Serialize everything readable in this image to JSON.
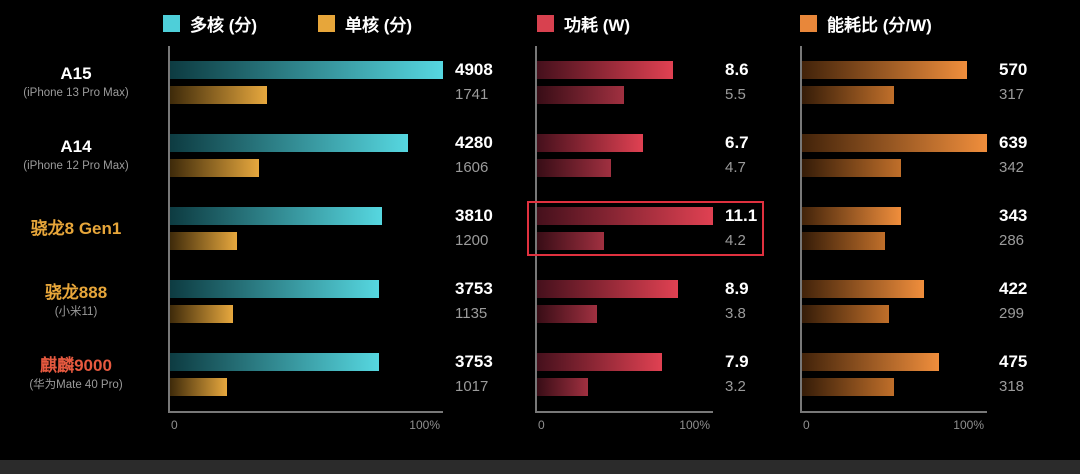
{
  "legend": {
    "items": [
      {
        "label": "多核 (分)",
        "color": "#4ecfd9"
      },
      {
        "label": "单核 (分)",
        "color": "#e7a63a"
      },
      {
        "label": "功耗 (W)",
        "color": "#d8414f"
      },
      {
        "label": "能耗比 (分/W)",
        "color": "#e8873a"
      }
    ]
  },
  "axis": {
    "zero": "0",
    "hundred": "100%"
  },
  "highlight_color": "#e0313f",
  "chart_data": {
    "type": "bar",
    "orientation": "horizontal",
    "legend_position": "top",
    "axis_range": [
      "0",
      "100%"
    ],
    "series_names": [
      "多核 (分)",
      "单核 (分)",
      "功耗 (W)",
      "能耗比 (分/W)"
    ],
    "max": {
      "score": 4908,
      "power": 11.1,
      "efficiency": 639
    },
    "rows": [
      {
        "chip": "A15",
        "subtitle": "(iPhone 13 Pro Max)",
        "chip_color": "#ffffff",
        "multi_core": 4908,
        "single_core": 1741,
        "power_max": 8.6,
        "power_secondary": 5.5,
        "efficiency": 570,
        "efficiency_secondary": 317,
        "highlight_power": false
      },
      {
        "chip": "A14",
        "subtitle": "(iPhone 12 Pro Max)",
        "chip_color": "#ffffff",
        "multi_core": 4280,
        "single_core": 1606,
        "power_max": 6.7,
        "power_secondary": 4.7,
        "efficiency": 639,
        "efficiency_secondary": 342,
        "highlight_power": false
      },
      {
        "chip": "骁龙8 Gen1",
        "subtitle": "",
        "chip_color": "#e7a63a",
        "multi_core": 3810,
        "single_core": 1200,
        "power_max": 11.1,
        "power_secondary": 4.2,
        "efficiency": 343,
        "efficiency_secondary": 286,
        "highlight_power": true
      },
      {
        "chip": "骁龙888",
        "subtitle": "(小米11)",
        "chip_color": "#e7a63a",
        "multi_core": 3753,
        "single_core": 1135,
        "power_max": 8.9,
        "power_secondary": 3.8,
        "efficiency": 422,
        "efficiency_secondary": 299,
        "highlight_power": false
      },
      {
        "chip": "麒麟9000",
        "subtitle": "(华为Mate 40 Pro)",
        "chip_color": "#e6593f",
        "multi_core": 3753,
        "single_core": 1017,
        "power_max": 7.9,
        "power_secondary": 3.2,
        "efficiency": 475,
        "efficiency_secondary": 318,
        "highlight_power": false
      }
    ]
  }
}
